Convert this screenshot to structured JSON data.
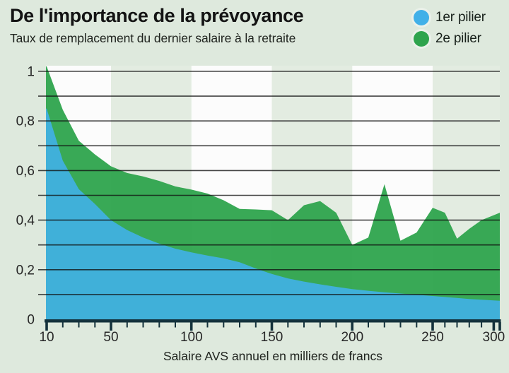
{
  "header": {
    "title": "De l'importance de la prévoyance",
    "subtitle": "Taux de remplacement du dernier salaire à la retraite"
  },
  "legend": [
    {
      "label": "1er pilier",
      "color": "#41b0e8"
    },
    {
      "label": "2e pilier",
      "color": "#2ea44d"
    }
  ],
  "colors": {
    "background": "#dee9dd",
    "band_white": "#fcfcfc",
    "band_tint": "#e3ece1",
    "gridline": "#111111",
    "axis": "#14323c",
    "tick_text": "#262626",
    "axis_title_text": "#20241f"
  },
  "chart_data": {
    "type": "area",
    "stacked": true,
    "title": "De l'importance de la prévoyance",
    "subtitle": "Taux de remplacement du dernier salaire à la retraite",
    "xlabel": "Salaire AVS annuel en milliers de francs",
    "ylabel": "",
    "xlim": [
      10,
      305
    ],
    "ylim": [
      0,
      1.05
    ],
    "grid": "horizontal, every 0.1",
    "legend_position": "top-right",
    "x": [
      10,
      20,
      30,
      40,
      50,
      60,
      70,
      80,
      90,
      100,
      110,
      120,
      130,
      140,
      150,
      160,
      170,
      180,
      190,
      200,
      210,
      220,
      230,
      240,
      250,
      260,
      270,
      280,
      290,
      300,
      305
    ],
    "series": [
      {
        "name": "1er pilier",
        "color": "#41b0e8",
        "values": [
          0.85,
          0.64,
          0.525,
          0.465,
          0.4,
          0.36,
          0.33,
          0.305,
          0.285,
          0.27,
          0.257,
          0.246,
          0.23,
          0.205,
          0.183,
          0.165,
          0.152,
          0.141,
          0.131,
          0.122,
          0.115,
          0.109,
          0.104,
          0.099,
          0.094,
          0.09,
          0.086,
          0.082,
          0.079,
          0.076,
          0.075
        ]
      },
      {
        "name": "2e pilier",
        "color": "#2ea44d",
        "values": [
          0.17,
          0.205,
          0.195,
          0.2,
          0.217,
          0.23,
          0.246,
          0.253,
          0.251,
          0.253,
          0.25,
          0.234,
          0.215,
          0.238,
          0.257,
          0.235,
          0.308,
          0.336,
          0.299,
          0.178,
          0.215,
          0.436,
          0.213,
          0.251,
          0.356,
          0.34,
          0.239,
          0.283,
          0.321,
          0.344,
          0.355
        ]
      }
    ],
    "y_tick_labels": [
      {
        "v": 1.0,
        "t": "1"
      },
      {
        "v": 0.8,
        "t": "0,8"
      },
      {
        "v": 0.6,
        "t": "0,6"
      },
      {
        "v": 0.4,
        "t": "0,4"
      },
      {
        "v": 0.2,
        "t": "0,2"
      },
      {
        "v": 0.0,
        "t": "0"
      }
    ],
    "y_gridline_step": 0.1,
    "x_major_ticks": [
      10,
      50,
      100,
      150,
      200,
      250,
      300
    ],
    "x_minor_tick_step": 10,
    "bands": [
      {
        "from": 10,
        "to": 50,
        "kind": "white"
      },
      {
        "from": 50,
        "to": 100,
        "kind": "tint"
      },
      {
        "from": 100,
        "to": 150,
        "kind": "white"
      },
      {
        "from": 150,
        "to": 200,
        "kind": "tint"
      },
      {
        "from": 200,
        "to": 250,
        "kind": "white"
      },
      {
        "from": 250,
        "to": 305,
        "kind": "tint"
      }
    ]
  }
}
